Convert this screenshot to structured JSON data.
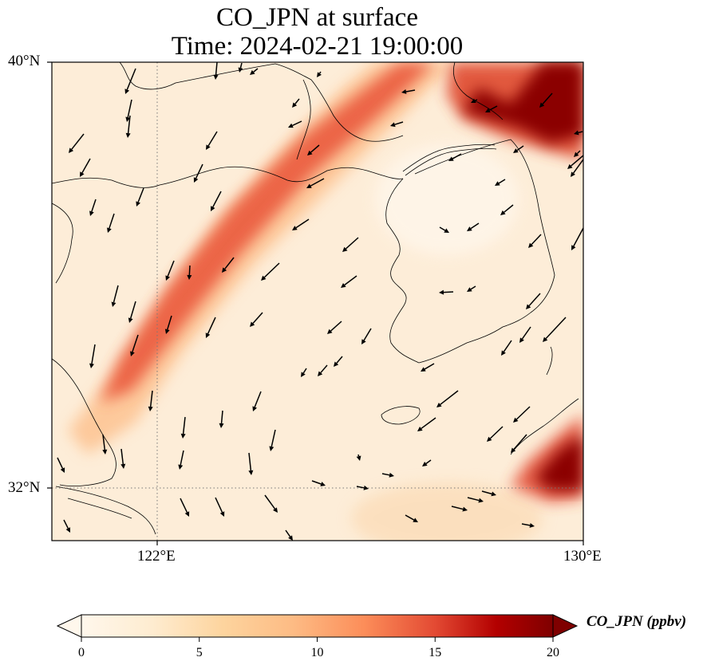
{
  "title": {
    "line1": "CO_JPN at surface",
    "line2": "Time: 2024-02-21 19:00:00"
  },
  "map": {
    "variable": "CO_JPN",
    "units": "ppbv",
    "lon_range": [
      119.5,
      130
    ],
    "lat_range": [
      31,
      40
    ],
    "gridlines": {
      "lons": [
        122
      ],
      "lats": [
        32
      ],
      "style": "dotted"
    },
    "colormap": "OrRd",
    "colors": {
      "low": "#fff7ec",
      "mid": "#fdbb84",
      "high": "#d7301f",
      "max": "#7f0000",
      "coastline": "#000000",
      "wind_arrow": "#000000"
    },
    "plumes": [
      {
        "name": "northwest band",
        "peak_ppbv": 12
      },
      {
        "name": "northeast corner",
        "peak_ppbv": 20
      },
      {
        "name": "southeast corner",
        "peak_ppbv": 20
      }
    ],
    "wind_vectors": "southwest-directed arrows over land and sea"
  },
  "axes": {
    "y_ticks": [
      {
        "label": "40°N",
        "lat": 40
      },
      {
        "label": "32°N",
        "lat": 32
      }
    ],
    "x_ticks": [
      {
        "label": "122°E",
        "lon": 122
      },
      {
        "label": "130°E",
        "lon": 130
      }
    ]
  },
  "colorbar": {
    "label": "CO_JPN (ppbv)",
    "range": [
      0,
      20
    ],
    "extend": "both",
    "ticks": [
      "0",
      "5",
      "10",
      "15",
      "20"
    ]
  }
}
